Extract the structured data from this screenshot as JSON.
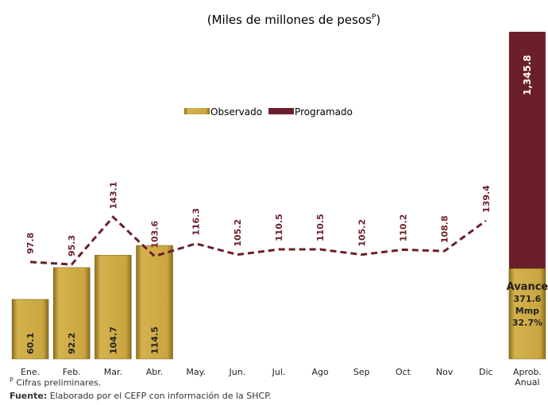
{
  "chart_data": {
    "type": "bar-line",
    "subtitle": [
      "(Miles de millones de pesos",
      "P",
      ")"
    ],
    "categories": [
      "Ene.",
      "Feb.",
      "Mar.",
      "Abr.",
      "May.",
      "Jun.",
      "Jul.",
      "Ago",
      "Sep",
      "Oct",
      "Nov",
      "Dic"
    ],
    "series": [
      {
        "name": "Observado",
        "color": "#c9a440",
        "kind": "bar",
        "values": [
          60.1,
          92.2,
          104.7,
          114.5,
          null,
          null,
          null,
          null,
          null,
          null,
          null,
          null
        ]
      },
      {
        "name": "Programado",
        "color": "#6b1f2a",
        "kind": "line",
        "values": [
          97.8,
          95.3,
          143.1,
          103.6,
          116.3,
          105.2,
          110.5,
          110.5,
          105.2,
          110.2,
          108.8,
          139.4
        ]
      }
    ],
    "ylim": [
      0,
      330
    ],
    "annual": {
      "category": "Aprob. Anual",
      "total": 1345.8,
      "total_label": "1,345.8",
      "avance_title": "Avance",
      "avance": 371.6,
      "unit": "Mmp",
      "pct": 32.7,
      "pct_label": "32.7%"
    },
    "note_sup": "P",
    "note": "Cifras preliminares.",
    "source_label": "Fuente:",
    "source": "Elaborado por el CEFP con información de la SHCP."
  }
}
